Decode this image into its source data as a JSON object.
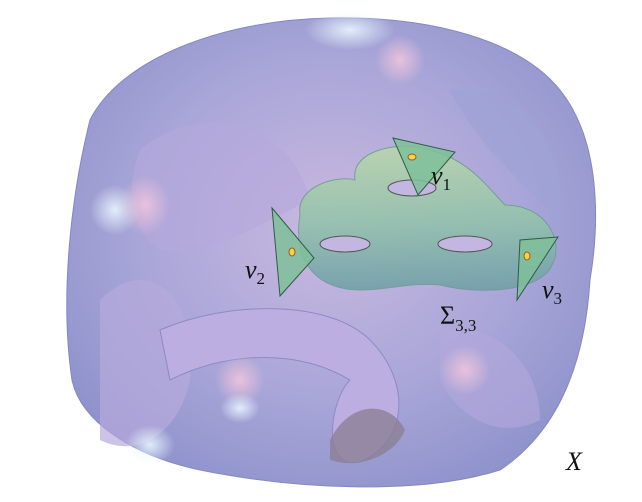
{
  "labels": {
    "v1": {
      "base": "v",
      "sub": "1"
    },
    "v2": {
      "base": "v",
      "sub": "2"
    },
    "v3": {
      "base": "v",
      "sub": "3"
    },
    "sigma": {
      "base": "Σ",
      "sub": "3,3"
    },
    "space": "X"
  }
}
